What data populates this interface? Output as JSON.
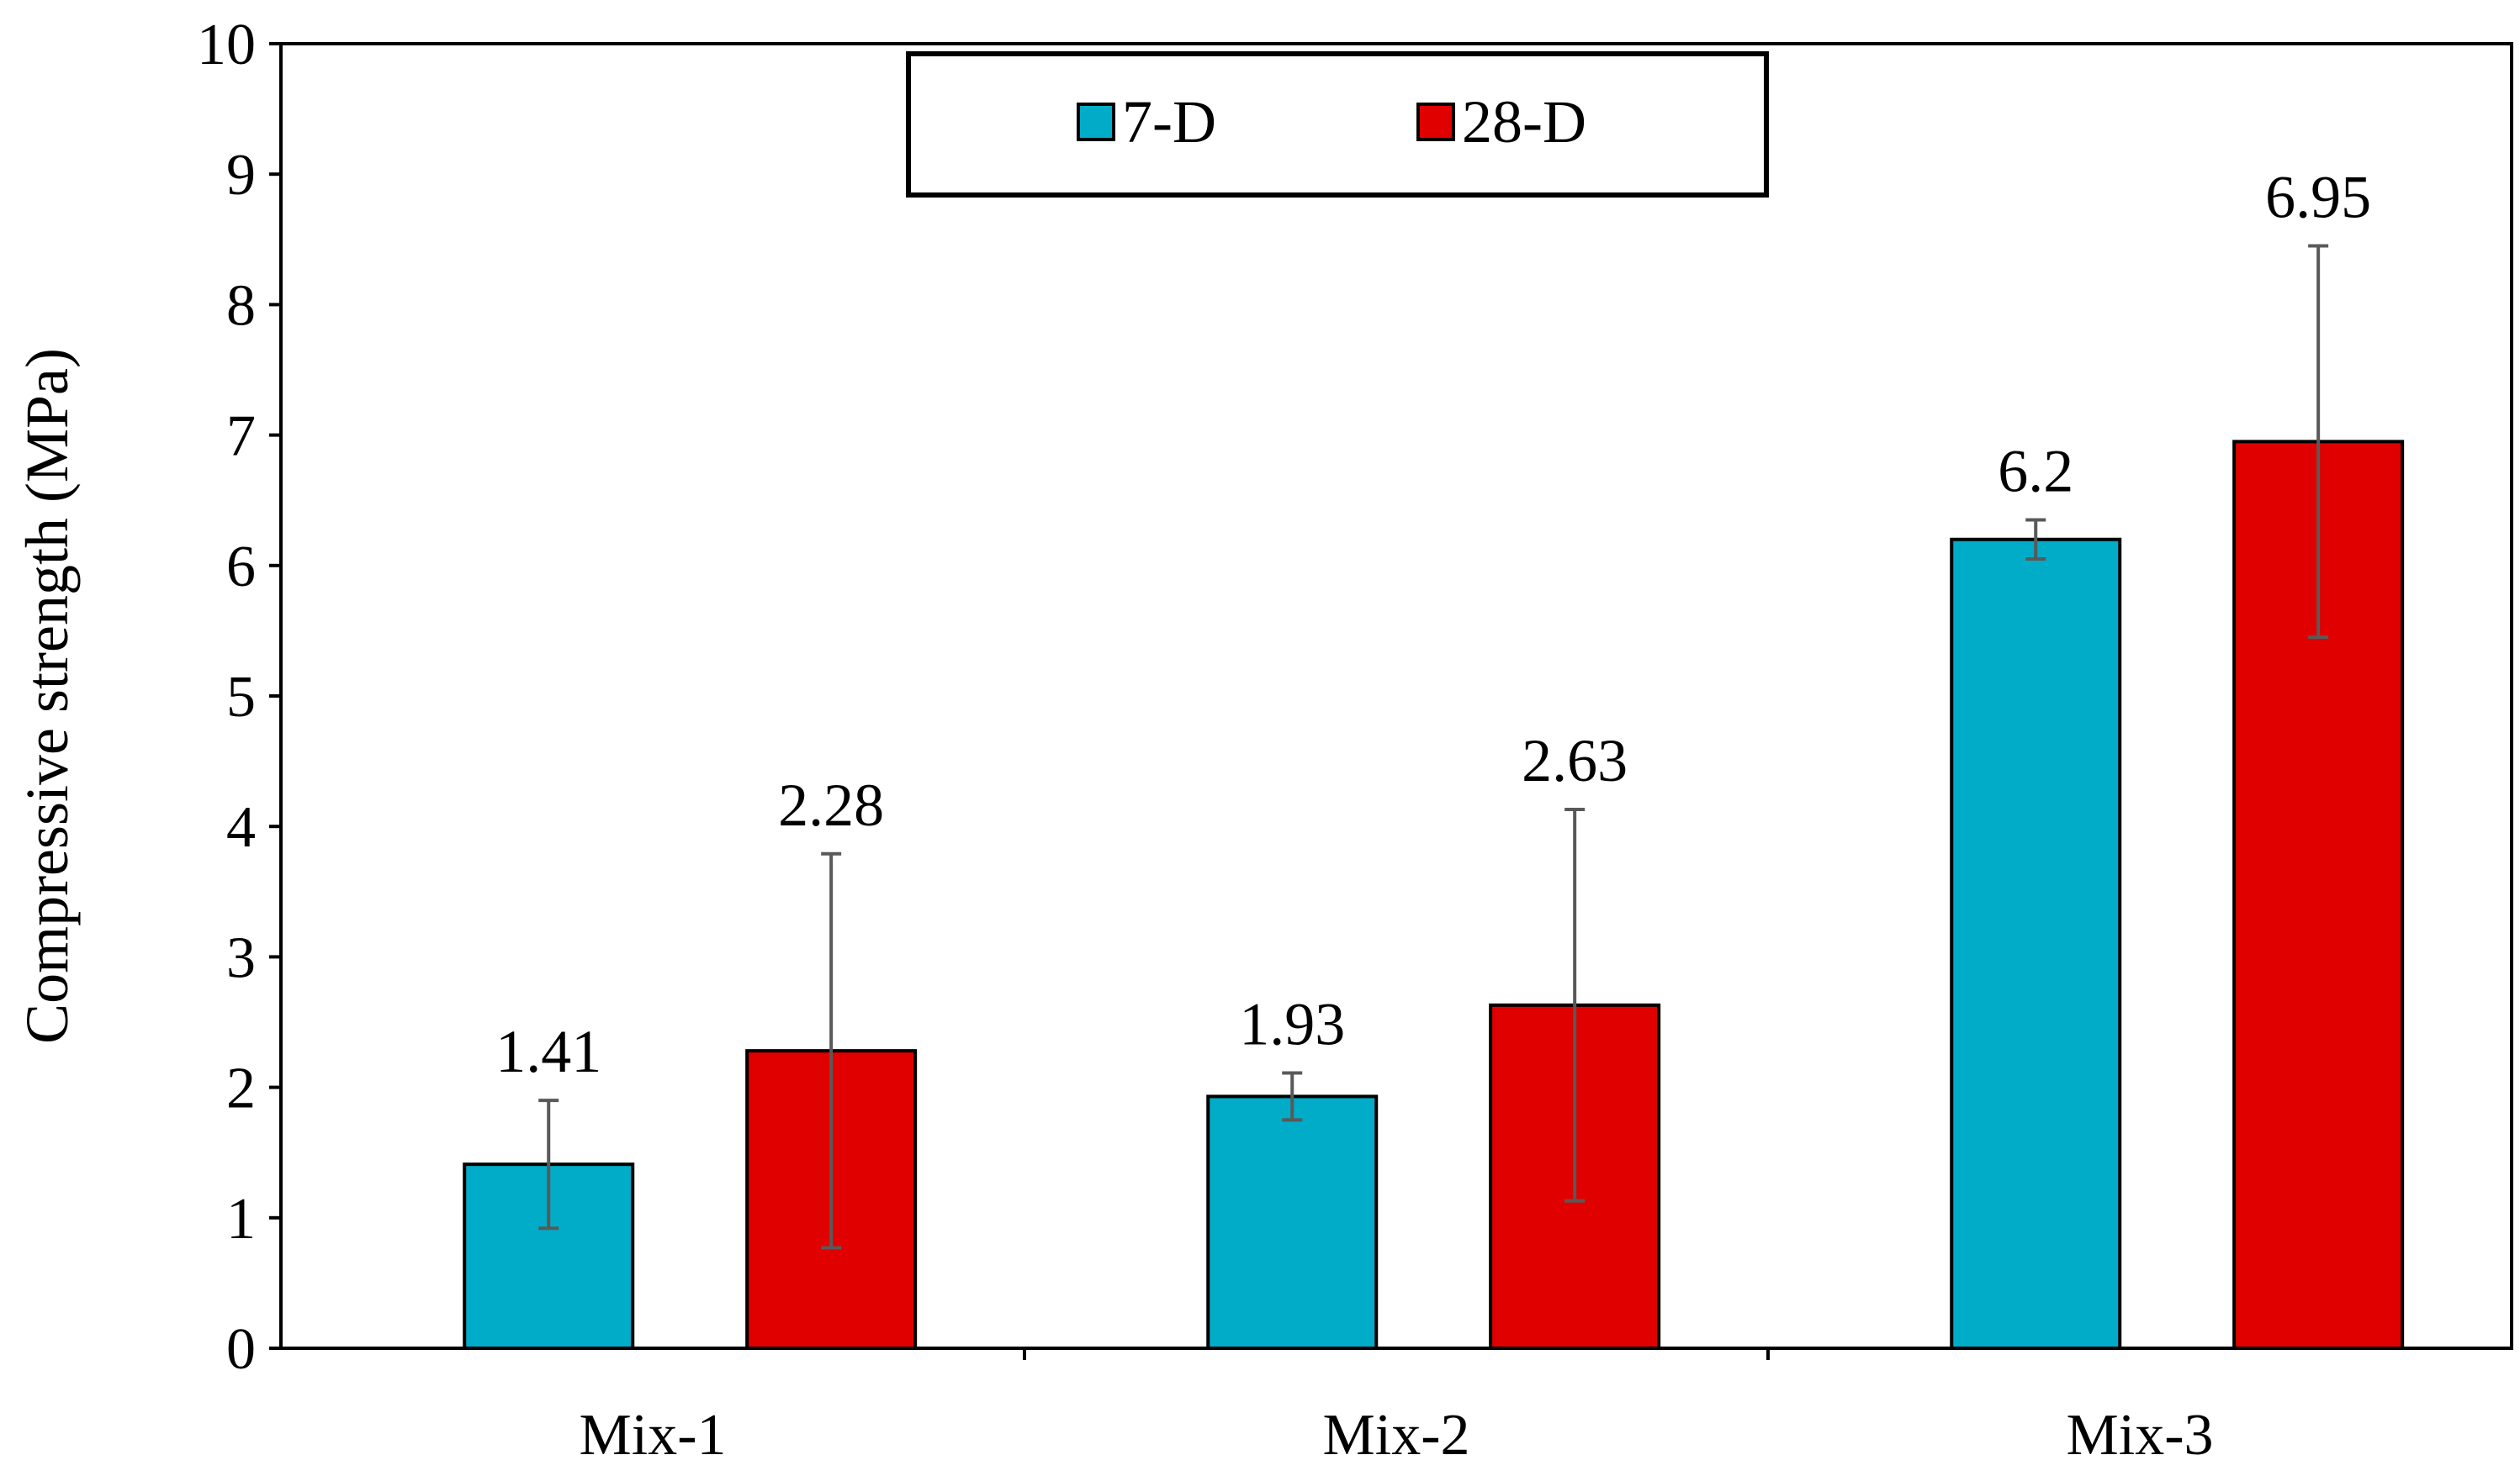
{
  "chart_data": {
    "type": "bar",
    "title": "",
    "xlabel": "",
    "ylabel": "Compressive strength (MPa)",
    "ylim": [
      0,
      10
    ],
    "yticks": [
      "0",
      "1",
      "2",
      "3",
      "4",
      "5",
      "6",
      "7",
      "8",
      "9",
      "10"
    ],
    "categories": [
      "Mix-1",
      "Mix-2",
      "Mix-3"
    ],
    "series": [
      {
        "name": "7-D",
        "color": "#00acc8",
        "values": [
          1.41,
          1.93,
          6.2
        ],
        "labels": [
          "1.41",
          "1.93",
          "6.2"
        ],
        "error": [
          0.49,
          0.18,
          0.15
        ]
      },
      {
        "name": "28-D",
        "color": "#e00000",
        "values": [
          2.28,
          2.63,
          6.95
        ],
        "labels": [
          "2.28",
          "2.63",
          "6.95"
        ],
        "error": [
          1.51,
          1.5,
          1.5
        ]
      }
    ],
    "grid": false,
    "legend": "top-center, boxed"
  }
}
